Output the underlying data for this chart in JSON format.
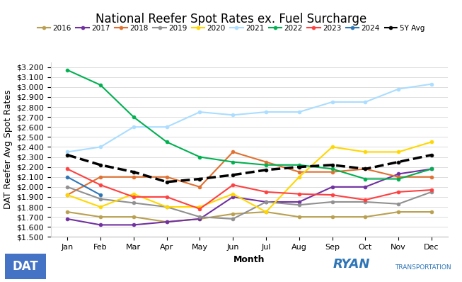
{
  "title": "National Reefer Spot Rates ex. Fuel Surcharge",
  "xlabel": "Month",
  "ylabel": "DAT Reefer Avg Spot Rates",
  "months": [
    "Jan",
    "Feb",
    "Mar",
    "Apr",
    "May",
    "Jun",
    "Jul",
    "Aug",
    "Sep",
    "Oct",
    "Nov",
    "Dec"
  ],
  "ylim": [
    1.5,
    3.25
  ],
  "yticks": [
    1.5,
    1.6,
    1.7,
    1.8,
    1.9,
    2.0,
    2.1,
    2.2,
    2.3,
    2.4,
    2.5,
    2.6,
    2.7,
    2.8,
    2.9,
    3.0,
    3.1,
    3.2
  ],
  "series": {
    "2016": {
      "values": [
        1.75,
        1.7,
        1.7,
        1.65,
        1.68,
        1.73,
        1.75,
        1.7,
        1.7,
        1.7,
        1.75,
        1.75
      ],
      "color": "#b8a050",
      "lw": 1.5,
      "zorder": 2,
      "dashed": false
    },
    "2017": {
      "values": [
        1.68,
        1.62,
        1.62,
        1.65,
        1.68,
        1.9,
        1.85,
        1.85,
        2.0,
        2.0,
        2.13,
        2.18
      ],
      "color": "#7030a0",
      "lw": 1.5,
      "zorder": 2,
      "dashed": false
    },
    "2018": {
      "values": [
        1.92,
        2.1,
        2.1,
        2.1,
        2.0,
        2.35,
        2.25,
        2.15,
        2.15,
        2.18,
        2.1,
        2.1
      ],
      "color": "#e07030",
      "lw": 1.5,
      "zorder": 2,
      "dashed": false
    },
    "2019": {
      "values": [
        2.0,
        1.88,
        1.84,
        1.8,
        1.7,
        1.68,
        1.85,
        1.82,
        1.85,
        1.85,
        1.83,
        1.95
      ],
      "color": "#909090",
      "lw": 1.5,
      "zorder": 2,
      "dashed": false
    },
    "2020": {
      "values": [
        1.92,
        1.8,
        1.93,
        1.8,
        1.8,
        1.93,
        1.75,
        2.1,
        2.4,
        2.35,
        2.35,
        2.45
      ],
      "color": "#ffd700",
      "lw": 1.5,
      "zorder": 2,
      "dashed": false
    },
    "2021": {
      "values": [
        2.35,
        2.4,
        2.6,
        2.6,
        2.75,
        2.72,
        2.75,
        2.75,
        2.85,
        2.85,
        2.98,
        3.03
      ],
      "color": "#aaddff",
      "lw": 1.5,
      "zorder": 2,
      "dashed": false
    },
    "2022": {
      "values": [
        3.17,
        3.02,
        2.7,
        2.45,
        2.3,
        2.25,
        2.22,
        2.22,
        2.18,
        2.08,
        2.08,
        2.18
      ],
      "color": "#00b050",
      "lw": 1.5,
      "zorder": 2,
      "dashed": false
    },
    "2023": {
      "values": [
        2.18,
        2.02,
        1.9,
        1.9,
        1.78,
        2.02,
        1.95,
        1.93,
        1.92,
        1.87,
        1.95,
        1.97
      ],
      "color": "#ff4040",
      "lw": 1.5,
      "zorder": 2,
      "dashed": false
    },
    "2024": {
      "values": [
        2.1,
        1.92,
        null,
        null,
        null,
        null,
        null,
        null,
        null,
        null,
        null,
        null
      ],
      "color": "#2e75b6",
      "lw": 1.5,
      "zorder": 3,
      "dashed": false
    },
    "5Y Avg": {
      "values": [
        2.32,
        2.22,
        2.15,
        2.05,
        2.08,
        2.12,
        2.17,
        2.2,
        2.22,
        2.18,
        2.25,
        2.32
      ],
      "color": "#000000",
      "lw": 2.5,
      "zorder": 4,
      "dashed": true
    }
  },
  "legend_order": [
    "2016",
    "2017",
    "2018",
    "2019",
    "2020",
    "2021",
    "2022",
    "2023",
    "2024",
    "5Y Avg"
  ],
  "background_color": "#ffffff",
  "grid_color": "#d8d8d8",
  "title_fontsize": 12,
  "label_fontsize": 9,
  "tick_fontsize": 8,
  "legend_fontsize": 7.5,
  "dat_color": "#4472c4",
  "ryan_color": "#2e75b6"
}
